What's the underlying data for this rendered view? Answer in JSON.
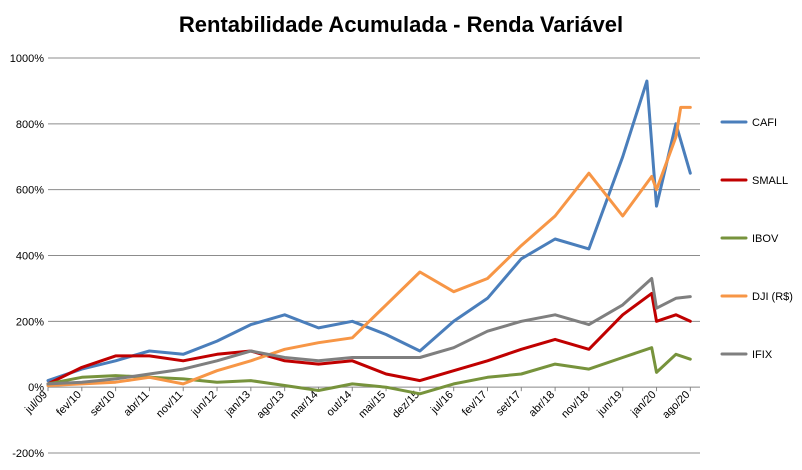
{
  "chart_data": {
    "type": "line",
    "title": "Rentabilidade Acumulada - Renda Variável",
    "xlabel": "",
    "ylabel": "",
    "ylim": [
      -200,
      1000
    ],
    "y_ticks": [
      "-200%",
      "0%",
      "200%",
      "400%",
      "600%",
      "800%",
      "1000%"
    ],
    "y_tick_values": [
      -200,
      0,
      200,
      400,
      600,
      800,
      1000
    ],
    "x_ticks": [
      "jul/09",
      "fev/10",
      "set/10",
      "abr/11",
      "nov/11",
      "jun/12",
      "jan/13",
      "ago/13",
      "mar/14",
      "out/14",
      "mai/15",
      "dez/15",
      "jul/16",
      "fev/17",
      "set/17",
      "abr/18",
      "nov/18",
      "jun/19",
      "jan/20",
      "ago/20"
    ],
    "grid": true,
    "legend_position": "right",
    "series": [
      {
        "name": "CAFI",
        "color": "#4A7EBB",
        "points": [
          [
            "jul/09",
            20
          ],
          [
            "fev/10",
            55
          ],
          [
            "set/10",
            80
          ],
          [
            "abr/11",
            110
          ],
          [
            "nov/11",
            100
          ],
          [
            "jun/12",
            140
          ],
          [
            "jan/13",
            190
          ],
          [
            "ago/13",
            220
          ],
          [
            "mar/14",
            180
          ],
          [
            "out/14",
            200
          ],
          [
            "mai/15",
            160
          ],
          [
            "dez/15",
            110
          ],
          [
            "jul/16",
            200
          ],
          [
            "fev/17",
            270
          ],
          [
            "set/17",
            390
          ],
          [
            "abr/18",
            450
          ],
          [
            "nov/18",
            420
          ],
          [
            "jun/19",
            700
          ],
          [
            "nov/19",
            930
          ],
          [
            "jan/20",
            550
          ],
          [
            "mai/20",
            800
          ],
          [
            "ago/20",
            650
          ]
        ]
      },
      {
        "name": "SMALL",
        "color": "#C00000",
        "points": [
          [
            "jul/09",
            10
          ],
          [
            "fev/10",
            60
          ],
          [
            "set/10",
            95
          ],
          [
            "abr/11",
            95
          ],
          [
            "nov/11",
            80
          ],
          [
            "jun/12",
            100
          ],
          [
            "jan/13",
            110
          ],
          [
            "ago/13",
            80
          ],
          [
            "mar/14",
            70
          ],
          [
            "out/14",
            80
          ],
          [
            "mai/15",
            40
          ],
          [
            "dez/15",
            20
          ],
          [
            "jul/16",
            50
          ],
          [
            "fev/17",
            80
          ],
          [
            "set/17",
            115
          ],
          [
            "abr/18",
            145
          ],
          [
            "nov/18",
            115
          ],
          [
            "jun/19",
            220
          ],
          [
            "dez/19",
            285
          ],
          [
            "jan/20",
            200
          ],
          [
            "mai/20",
            220
          ],
          [
            "ago/20",
            200
          ]
        ]
      },
      {
        "name": "IBOV",
        "color": "#77933C",
        "points": [
          [
            "jul/09",
            10
          ],
          [
            "fev/10",
            30
          ],
          [
            "set/10",
            35
          ],
          [
            "abr/11",
            30
          ],
          [
            "nov/11",
            25
          ],
          [
            "jun/12",
            15
          ],
          [
            "jan/13",
            20
          ],
          [
            "ago/13",
            5
          ],
          [
            "mar/14",
            -10
          ],
          [
            "out/14",
            10
          ],
          [
            "mai/15",
            0
          ],
          [
            "dez/15",
            -20
          ],
          [
            "jul/16",
            10
          ],
          [
            "fev/17",
            30
          ],
          [
            "set/17",
            40
          ],
          [
            "abr/18",
            70
          ],
          [
            "nov/18",
            55
          ],
          [
            "jun/19",
            90
          ],
          [
            "dez/19",
            120
          ],
          [
            "jan/20",
            45
          ],
          [
            "mai/20",
            100
          ],
          [
            "ago/20",
            85
          ]
        ]
      },
      {
        "name": "DJI (R$)",
        "color": "#F79646",
        "points": [
          [
            "jul/09",
            5
          ],
          [
            "fev/10",
            10
          ],
          [
            "set/10",
            15
          ],
          [
            "abr/11",
            30
          ],
          [
            "nov/11",
            10
          ],
          [
            "jun/12",
            50
          ],
          [
            "jan/13",
            80
          ],
          [
            "ago/13",
            115
          ],
          [
            "mar/14",
            135
          ],
          [
            "out/14",
            150
          ],
          [
            "mai/15",
            250
          ],
          [
            "dez/15",
            350
          ],
          [
            "jul/16",
            290
          ],
          [
            "fev/17",
            330
          ],
          [
            "set/17",
            430
          ],
          [
            "abr/18",
            520
          ],
          [
            "nov/18",
            650
          ],
          [
            "jun/19",
            520
          ],
          [
            "dez/19",
            640
          ],
          [
            "jan/20",
            600
          ],
          [
            "mai/20",
            760
          ],
          [
            "jun/20",
            850
          ],
          [
            "ago/20",
            850
          ]
        ]
      },
      {
        "name": "IFIX",
        "color": "#7F7F7F",
        "points": [
          [
            "jul/09",
            10
          ],
          [
            "fev/10",
            15
          ],
          [
            "set/10",
            25
          ],
          [
            "abr/11",
            40
          ],
          [
            "nov/11",
            55
          ],
          [
            "jun/12",
            80
          ],
          [
            "jan/13",
            110
          ],
          [
            "ago/13",
            90
          ],
          [
            "mar/14",
            80
          ],
          [
            "out/14",
            90
          ],
          [
            "mai/15",
            90
          ],
          [
            "dez/15",
            90
          ],
          [
            "jul/16",
            120
          ],
          [
            "fev/17",
            170
          ],
          [
            "set/17",
            200
          ],
          [
            "abr/18",
            220
          ],
          [
            "nov/18",
            190
          ],
          [
            "jun/19",
            250
          ],
          [
            "dez/19",
            330
          ],
          [
            "jan/20",
            240
          ],
          [
            "mai/20",
            270
          ],
          [
            "ago/20",
            275
          ]
        ]
      }
    ]
  }
}
